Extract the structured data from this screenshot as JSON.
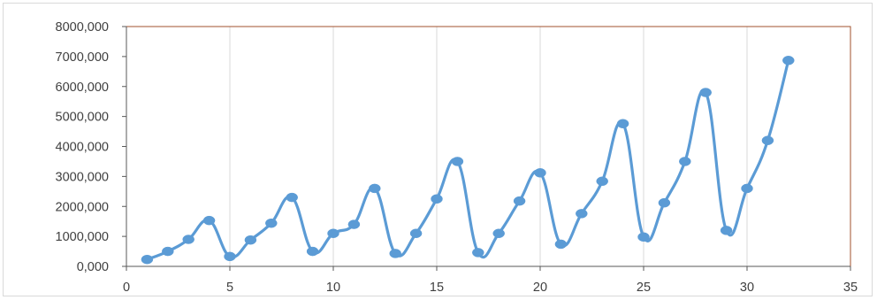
{
  "chart_data": {
    "type": "scatter",
    "smooth_lines": true,
    "series": [
      {
        "x": [
          1,
          2,
          3,
          4,
          5,
          6,
          7,
          8,
          9,
          10,
          11,
          12,
          13,
          14,
          15,
          16,
          17,
          18,
          19,
          20,
          21,
          22,
          23,
          24,
          25,
          26,
          27,
          28,
          29,
          30,
          31,
          32
        ],
        "values": [
          230,
          500,
          900,
          1530,
          330,
          880,
          1440,
          2300,
          500,
          1100,
          1400,
          2600,
          430,
          1100,
          2250,
          3500,
          460,
          1100,
          2180,
          3120,
          740,
          1760,
          2840,
          4760,
          980,
          2120,
          3500,
          5800,
          1200,
          2600,
          4200,
          6870
        ]
      }
    ],
    "x_axis": {
      "min": 0,
      "max": 35,
      "step": 5,
      "tick_labels": [
        "0",
        "5",
        "10",
        "15",
        "20",
        "25",
        "30",
        "35"
      ]
    },
    "y_axis": {
      "min": 0,
      "max": 8000,
      "step": 1000,
      "tick_labels": [
        "0,000",
        "1000,000",
        "2000,000",
        "3000,000",
        "4000,000",
        "5000,000",
        "6000,000",
        "7000,000",
        "8000,000"
      ]
    },
    "grid": {
      "vertical": true,
      "horizontal": false
    },
    "colors": {
      "series": "#5b9bd5",
      "grid": "#d9d9d9",
      "plot_border": "#a0522d",
      "axis": "#595959",
      "text": "#404040"
    }
  }
}
